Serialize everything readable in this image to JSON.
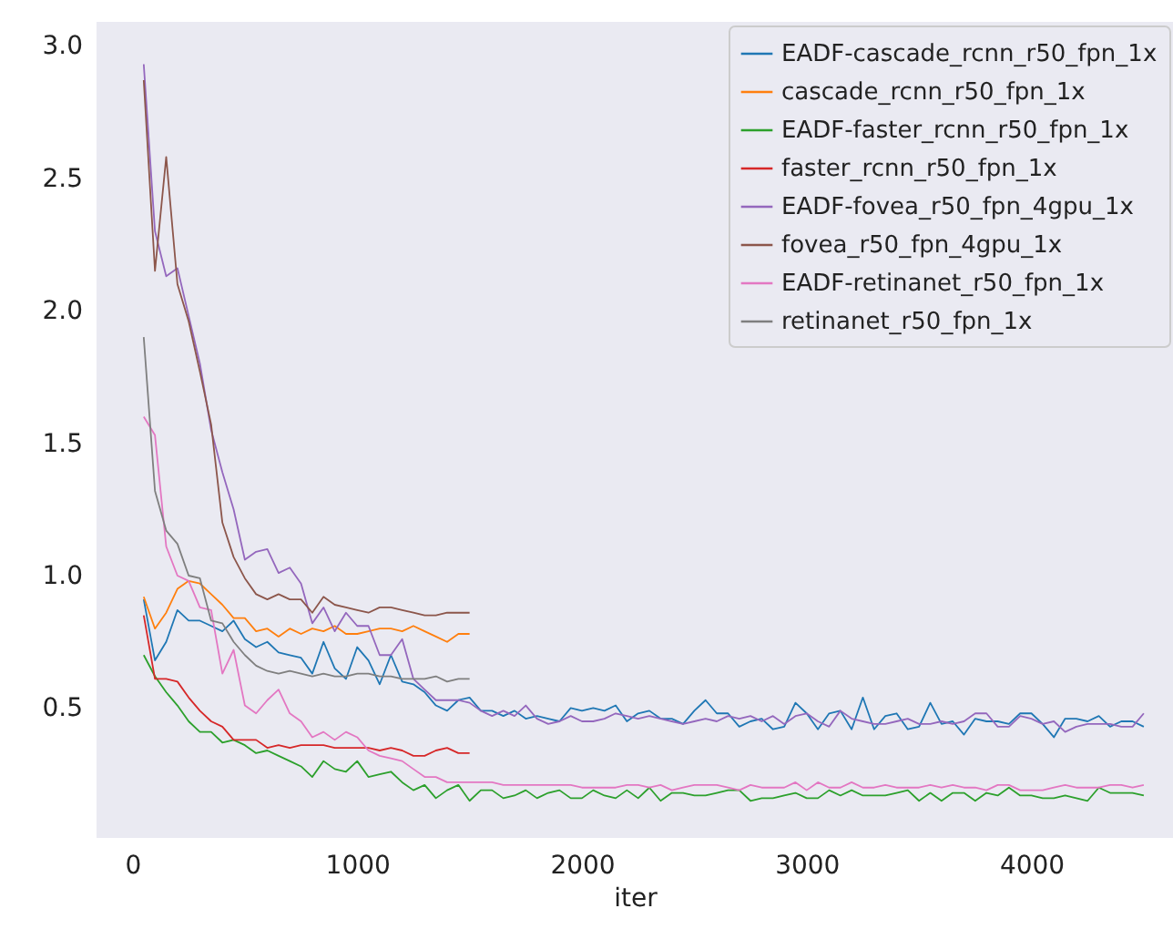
{
  "chart_data": {
    "type": "line",
    "xlabel": "iter",
    "x": [
      50,
      100,
      150,
      200,
      250,
      300,
      350,
      400,
      450,
      500,
      550,
      600,
      650,
      700,
      750,
      800,
      850,
      900,
      950,
      1000,
      1050,
      1100,
      1150,
      1200,
      1250,
      1300,
      1350,
      1400,
      1450,
      1500,
      1550,
      1600,
      1650,
      1700,
      1750,
      1800,
      1850,
      1900,
      1950,
      2000,
      2050,
      2100,
      2150,
      2200,
      2250,
      2300,
      2350,
      2400,
      2450,
      2500,
      2550,
      2600,
      2650,
      2700,
      2750,
      2800,
      2850,
      2900,
      2950,
      3000,
      3050,
      3100,
      3150,
      3200,
      3250,
      3300,
      3350,
      3400,
      3450,
      3500,
      3550,
      3600,
      3650,
      3700,
      3750,
      3800,
      3850,
      3900,
      3950,
      4000,
      4050,
      4100,
      4150,
      4200,
      4250,
      4300,
      4350,
      4400,
      4450,
      4500
    ],
    "series": [
      {
        "name": "EADF-cascade_rcnn_r50_fpn_1x",
        "color": "#1f77b4",
        "values": [
          0.91,
          0.68,
          0.75,
          0.87,
          0.83,
          0.83,
          0.81,
          0.79,
          0.83,
          0.76,
          0.73,
          0.75,
          0.71,
          0.7,
          0.69,
          0.63,
          0.75,
          0.65,
          0.61,
          0.73,
          0.68,
          0.59,
          0.7,
          0.6,
          0.59,
          0.56,
          0.51,
          0.49,
          0.53,
          0.54,
          0.49,
          0.49,
          0.47,
          0.49,
          0.46,
          0.47,
          0.46,
          0.45,
          0.5,
          0.49,
          0.5,
          0.49,
          0.51,
          0.45,
          0.48,
          0.49,
          0.46,
          0.46,
          0.44,
          0.49,
          0.53,
          0.48,
          0.48,
          0.43,
          0.45,
          0.46,
          0.42,
          0.43,
          0.52,
          0.48,
          0.42,
          0.48,
          0.49,
          0.42,
          0.54,
          0.42,
          0.47,
          0.48,
          0.42,
          0.43,
          0.52,
          0.44,
          0.45,
          0.4,
          0.46,
          0.45,
          0.45,
          0.44,
          0.48,
          0.48,
          0.44,
          0.39,
          0.46,
          0.46,
          0.45,
          0.47,
          0.43,
          0.45,
          0.45,
          0.43
        ]
      },
      {
        "name": "cascade_rcnn_r50_fpn_1x",
        "color": "#ff7f0e",
        "x": [
          50,
          100,
          150,
          200,
          250,
          300,
          350,
          400,
          450,
          500,
          550,
          600,
          650,
          700,
          750,
          800,
          850,
          900,
          950,
          1000,
          1050,
          1100,
          1150,
          1200,
          1250,
          1300,
          1350,
          1400,
          1450,
          1500
        ],
        "values": [
          0.92,
          0.8,
          0.86,
          0.95,
          0.98,
          0.97,
          0.93,
          0.89,
          0.84,
          0.84,
          0.79,
          0.8,
          0.77,
          0.8,
          0.78,
          0.8,
          0.79,
          0.81,
          0.78,
          0.78,
          0.79,
          0.8,
          0.8,
          0.79,
          0.81,
          0.79,
          0.77,
          0.75,
          0.78,
          0.78
        ]
      },
      {
        "name": "EADF-faster_rcnn_r50_fpn_1x",
        "color": "#2ca02c",
        "values": [
          0.7,
          0.62,
          0.56,
          0.51,
          0.45,
          0.41,
          0.41,
          0.37,
          0.38,
          0.36,
          0.33,
          0.34,
          0.32,
          0.3,
          0.28,
          0.24,
          0.3,
          0.27,
          0.26,
          0.3,
          0.24,
          0.25,
          0.26,
          0.22,
          0.19,
          0.21,
          0.16,
          0.19,
          0.21,
          0.15,
          0.19,
          0.19,
          0.16,
          0.17,
          0.19,
          0.16,
          0.18,
          0.19,
          0.16,
          0.16,
          0.19,
          0.17,
          0.16,
          0.19,
          0.16,
          0.2,
          0.15,
          0.18,
          0.18,
          0.17,
          0.17,
          0.18,
          0.19,
          0.19,
          0.15,
          0.16,
          0.16,
          0.17,
          0.18,
          0.16,
          0.16,
          0.19,
          0.17,
          0.19,
          0.17,
          0.17,
          0.17,
          0.18,
          0.19,
          0.15,
          0.18,
          0.15,
          0.18,
          0.18,
          0.15,
          0.18,
          0.17,
          0.2,
          0.17,
          0.17,
          0.16,
          0.16,
          0.17,
          0.16,
          0.15,
          0.2,
          0.18,
          0.18,
          0.18,
          0.17
        ]
      },
      {
        "name": "faster_rcnn_r50_fpn_1x",
        "color": "#d62728",
        "x": [
          50,
          100,
          150,
          200,
          250,
          300,
          350,
          400,
          450,
          500,
          550,
          600,
          650,
          700,
          750,
          800,
          850,
          900,
          950,
          1000,
          1050,
          1100,
          1150,
          1200,
          1250,
          1300,
          1350,
          1400,
          1450,
          1500
        ],
        "values": [
          0.85,
          0.61,
          0.61,
          0.6,
          0.54,
          0.49,
          0.45,
          0.43,
          0.38,
          0.38,
          0.38,
          0.35,
          0.36,
          0.35,
          0.36,
          0.36,
          0.36,
          0.35,
          0.35,
          0.35,
          0.35,
          0.34,
          0.35,
          0.34,
          0.32,
          0.32,
          0.34,
          0.35,
          0.33,
          0.33
        ]
      },
      {
        "name": "EADF-fovea_r50_fpn_4gpu_1x",
        "color": "#9467bd",
        "values": [
          2.93,
          2.3,
          2.13,
          2.16,
          1.98,
          1.8,
          1.55,
          1.39,
          1.25,
          1.06,
          1.09,
          1.1,
          1.01,
          1.03,
          0.97,
          0.82,
          0.88,
          0.79,
          0.86,
          0.81,
          0.81,
          0.7,
          0.7,
          0.76,
          0.61,
          0.57,
          0.53,
          0.53,
          0.53,
          0.52,
          0.49,
          0.47,
          0.49,
          0.47,
          0.51,
          0.46,
          0.44,
          0.45,
          0.47,
          0.45,
          0.45,
          0.46,
          0.48,
          0.47,
          0.46,
          0.47,
          0.46,
          0.45,
          0.44,
          0.45,
          0.46,
          0.45,
          0.47,
          0.46,
          0.47,
          0.45,
          0.47,
          0.44,
          0.47,
          0.48,
          0.45,
          0.43,
          0.49,
          0.46,
          0.45,
          0.44,
          0.44,
          0.45,
          0.46,
          0.44,
          0.44,
          0.45,
          0.44,
          0.45,
          0.48,
          0.48,
          0.43,
          0.43,
          0.47,
          0.46,
          0.44,
          0.45,
          0.41,
          0.43,
          0.44,
          0.44,
          0.44,
          0.43,
          0.43,
          0.48
        ]
      },
      {
        "name": "fovea_r50_fpn_4gpu_1x",
        "color": "#8c564b",
        "x": [
          50,
          100,
          150,
          200,
          250,
          300,
          350,
          400,
          450,
          500,
          550,
          600,
          650,
          700,
          750,
          800,
          850,
          900,
          950,
          1000,
          1050,
          1100,
          1150,
          1200,
          1250,
          1300,
          1350,
          1400,
          1450,
          1500
        ],
        "values": [
          2.87,
          2.15,
          2.58,
          2.1,
          1.96,
          1.77,
          1.57,
          1.2,
          1.07,
          0.99,
          0.93,
          0.91,
          0.93,
          0.91,
          0.91,
          0.86,
          0.92,
          0.89,
          0.88,
          0.87,
          0.86,
          0.88,
          0.88,
          0.87,
          0.86,
          0.85,
          0.85,
          0.86,
          0.86,
          0.86
        ]
      },
      {
        "name": "EADF-retinanet_r50_fpn_1x",
        "color": "#e377c2",
        "values": [
          1.6,
          1.53,
          1.11,
          1.0,
          0.98,
          0.88,
          0.87,
          0.63,
          0.72,
          0.51,
          0.48,
          0.53,
          0.57,
          0.48,
          0.45,
          0.39,
          0.41,
          0.38,
          0.41,
          0.39,
          0.34,
          0.32,
          0.31,
          0.3,
          0.27,
          0.24,
          0.24,
          0.22,
          0.22,
          0.22,
          0.22,
          0.22,
          0.21,
          0.21,
          0.21,
          0.21,
          0.21,
          0.21,
          0.21,
          0.2,
          0.2,
          0.2,
          0.2,
          0.21,
          0.21,
          0.2,
          0.21,
          0.19,
          0.2,
          0.21,
          0.21,
          0.21,
          0.2,
          0.19,
          0.21,
          0.2,
          0.2,
          0.2,
          0.22,
          0.19,
          0.22,
          0.2,
          0.2,
          0.22,
          0.2,
          0.2,
          0.21,
          0.2,
          0.2,
          0.2,
          0.21,
          0.2,
          0.21,
          0.2,
          0.2,
          0.19,
          0.21,
          0.21,
          0.19,
          0.19,
          0.19,
          0.2,
          0.21,
          0.2,
          0.2,
          0.2,
          0.21,
          0.21,
          0.2,
          0.21
        ]
      },
      {
        "name": "retinanet_r50_fpn_1x",
        "color": "#7f7f7f",
        "x": [
          50,
          100,
          150,
          200,
          250,
          300,
          350,
          400,
          450,
          500,
          550,
          600,
          650,
          700,
          750,
          800,
          850,
          900,
          950,
          1000,
          1050,
          1100,
          1150,
          1200,
          1250,
          1300,
          1350,
          1400,
          1450,
          1500
        ],
        "values": [
          1.9,
          1.32,
          1.17,
          1.12,
          1.0,
          0.99,
          0.83,
          0.82,
          0.75,
          0.7,
          0.66,
          0.64,
          0.63,
          0.64,
          0.63,
          0.62,
          0.63,
          0.62,
          0.62,
          0.63,
          0.63,
          0.62,
          0.62,
          0.61,
          0.61,
          0.61,
          0.62,
          0.6,
          0.61,
          0.61
        ]
      }
    ],
    "xlim": [
      -160,
      4630
    ],
    "ylim": [
      0.01,
      3.09
    ],
    "xticks": [
      0,
      1000,
      2000,
      3000,
      4000
    ],
    "yticks": [
      0.5,
      {
        "value": 1,
        "label": "1.0"
      },
      1.5,
      {
        "value": 2,
        "label": "2.0"
      },
      2.5,
      {
        "value": 3,
        "label": "3.0"
      }
    ],
    "grid": false,
    "legend": "top right",
    "line_style": "solid",
    "marker": "none"
  }
}
